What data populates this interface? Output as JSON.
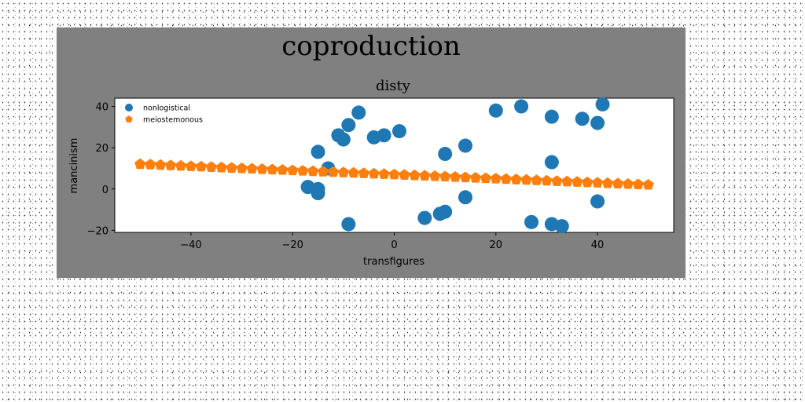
{
  "chart_data": {
    "type": "scatter",
    "title": "coproduction",
    "subtitle": "disty",
    "xlabel": "transfigures",
    "ylabel": "mancinism",
    "xlim": [
      -55,
      55
    ],
    "ylim": [
      -21,
      44
    ],
    "xticks": [
      -40,
      -20,
      0,
      20,
      40
    ],
    "yticks": [
      -20,
      0,
      20,
      40
    ],
    "grid": false,
    "legend_position": "top-left",
    "series": [
      {
        "name": "nonlogistical",
        "color": "#1f77b4",
        "marker": "circle",
        "points": [
          [
            -17,
            1
          ],
          [
            -15,
            0
          ],
          [
            -15,
            -2
          ],
          [
            -15,
            18
          ],
          [
            -13,
            10
          ],
          [
            -11,
            26
          ],
          [
            -10,
            24
          ],
          [
            -9,
            31
          ],
          [
            -9,
            -17
          ],
          [
            -7,
            37
          ],
          [
            -4,
            25
          ],
          [
            -2,
            26
          ],
          [
            1,
            28
          ],
          [
            6,
            -14
          ],
          [
            9,
            -12
          ],
          [
            10,
            -11
          ],
          [
            10,
            17
          ],
          [
            14,
            -4
          ],
          [
            14,
            21
          ],
          [
            20,
            38
          ],
          [
            25,
            40
          ],
          [
            27,
            -16
          ],
          [
            31,
            35
          ],
          [
            31,
            13
          ],
          [
            31,
            -17
          ],
          [
            33,
            -18
          ],
          [
            37,
            34
          ],
          [
            40,
            32
          ],
          [
            40,
            -6
          ],
          [
            41,
            41
          ]
        ]
      },
      {
        "name": "meiostemonous",
        "color": "#ff7f0e",
        "marker": "pentagon",
        "points": [
          [
            -50,
            12.0
          ],
          [
            -48,
            11.8
          ],
          [
            -46,
            11.6
          ],
          [
            -44,
            11.4
          ],
          [
            -42,
            11.2
          ],
          [
            -40,
            11.0
          ],
          [
            -38,
            10.8
          ],
          [
            -36,
            10.6
          ],
          [
            -34,
            10.4
          ],
          [
            -32,
            10.2
          ],
          [
            -30,
            10.0
          ],
          [
            -28,
            9.8
          ],
          [
            -26,
            9.6
          ],
          [
            -24,
            9.4
          ],
          [
            -22,
            9.2
          ],
          [
            -20,
            9.0
          ],
          [
            -18,
            8.8
          ],
          [
            -16,
            8.6
          ],
          [
            -14,
            8.4
          ],
          [
            -12,
            8.2
          ],
          [
            -10,
            8.0
          ],
          [
            -8,
            7.8
          ],
          [
            -6,
            7.6
          ],
          [
            -4,
            7.4
          ],
          [
            -2,
            7.2
          ],
          [
            0,
            7.0
          ],
          [
            2,
            6.8
          ],
          [
            4,
            6.6
          ],
          [
            6,
            6.4
          ],
          [
            8,
            6.2
          ],
          [
            10,
            6.0
          ],
          [
            12,
            5.8
          ],
          [
            14,
            5.6
          ],
          [
            16,
            5.4
          ],
          [
            18,
            5.2
          ],
          [
            20,
            5.0
          ],
          [
            22,
            4.8
          ],
          [
            24,
            4.6
          ],
          [
            26,
            4.4
          ],
          [
            28,
            4.2
          ],
          [
            30,
            4.0
          ],
          [
            32,
            3.8
          ],
          [
            34,
            3.6
          ],
          [
            36,
            3.4
          ],
          [
            38,
            3.2
          ],
          [
            40,
            3.0
          ],
          [
            42,
            2.8
          ],
          [
            44,
            2.6
          ],
          [
            46,
            2.4
          ],
          [
            48,
            2.2
          ],
          [
            50,
            2.0
          ]
        ]
      }
    ]
  }
}
